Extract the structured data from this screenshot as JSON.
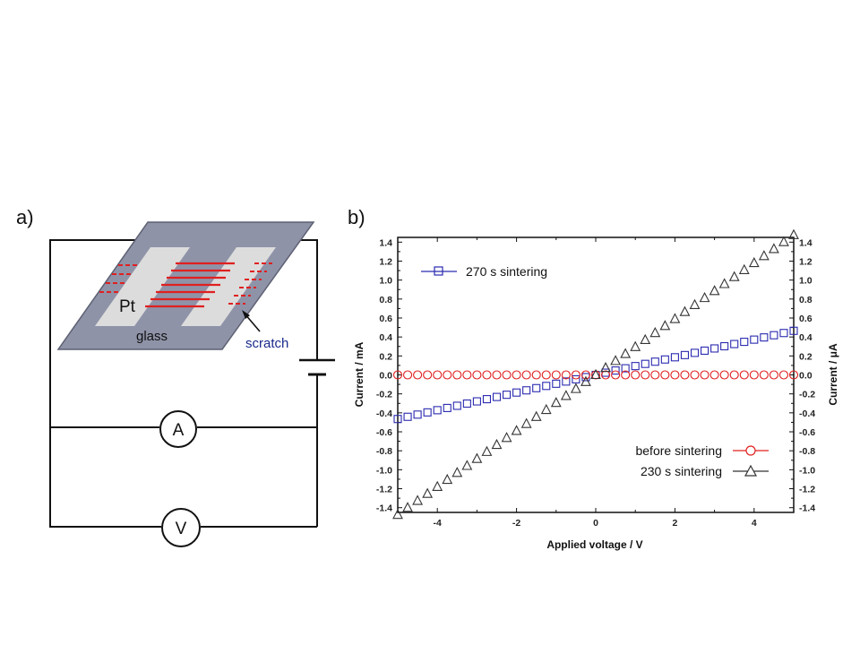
{
  "panel_a": {
    "label": "a)",
    "pt_label": "Pt",
    "glass_label": "glass",
    "scratch_label": "scratch",
    "ammeter_label": "A",
    "voltmeter_label": "V",
    "colors": {
      "glass": "#8f93a8",
      "electrode": "#dcdcdc",
      "lines": "#e02020",
      "scratch_text": "#1a2a8c"
    }
  },
  "panel_b": {
    "label": "b)"
  },
  "chart_data": {
    "type": "scatter",
    "xlabel": "Applied voltage / V",
    "ylabel_left": "Current / mA",
    "ylabel_right": "Current / μA",
    "xlim": [
      -5,
      5
    ],
    "ylim": [
      -1.45,
      1.45
    ],
    "x_ticks": [
      "-4",
      "-2",
      "0",
      "2",
      "4"
    ],
    "y_ticks": [
      "1.4",
      "1.2",
      "1.0",
      "0.8",
      "0.6",
      "0.4",
      "0.2",
      "0.0",
      "-0.2",
      "-0.4",
      "-0.6",
      "-0.8",
      "-1.0",
      "-1.2",
      "-1.4"
    ],
    "grid": false,
    "x_step": 0.25,
    "series": [
      {
        "name": "270 s sintering",
        "marker": "square",
        "color": "#2a2ab0",
        "axis": "left",
        "x_range": [
          -5,
          5
        ],
        "slope": 0.093,
        "intercept": 0.0,
        "legend_position": "top-left"
      },
      {
        "name": "before sintering",
        "marker": "circle",
        "color": "#e02020",
        "axis": "left",
        "x_range": [
          -5,
          5
        ],
        "slope": 0.0,
        "intercept": 0.0,
        "legend_position": "bottom-right"
      },
      {
        "name": "230 s sintering",
        "marker": "triangle",
        "color": "#333333",
        "axis": "right",
        "x_range": [
          -5,
          5
        ],
        "slope": 0.295,
        "intercept": 0.0,
        "legend_position": "bottom-right"
      }
    ]
  }
}
